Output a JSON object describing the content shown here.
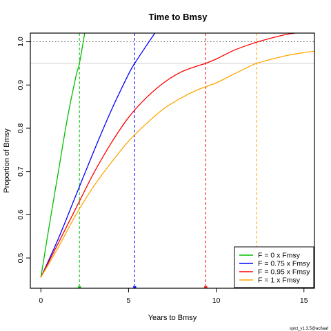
{
  "chart_data": {
    "type": "line",
    "title": "Time to Bmsy",
    "xlabel": "Years to Bmsy",
    "ylabel": "Proportion of Bmsy",
    "xlim": [
      -0.6,
      15.6
    ],
    "ylim": [
      0.43,
      1.02
    ],
    "x_ticks": [
      0,
      5,
      10,
      15
    ],
    "y_ticks": [
      0.5,
      0.6,
      0.7,
      0.8,
      0.9,
      1.0
    ],
    "x_tick_labels": [
      "0",
      "5",
      "10",
      "15"
    ],
    "y_tick_labels": [
      "0.5",
      "0.6",
      "0.7",
      "0.8",
      "0.9",
      "1.0"
    ],
    "reference_lines": [
      {
        "y": 1.0,
        "style": "dotted",
        "color": "#555555"
      },
      {
        "y": 0.95,
        "style": "solid",
        "color": "#cccccc"
      }
    ],
    "series": [
      {
        "name": "F = 0 x Fmsy",
        "color": "#00c000",
        "x": [
          0,
          0.5,
          1.0,
          1.5,
          2.0,
          2.2,
          2.5
        ],
        "y": [
          0.455,
          0.58,
          0.7,
          0.82,
          0.92,
          0.95,
          1.02
        ],
        "time_to_095": 2.2
      },
      {
        "name": "F = 0.75 x Fmsy",
        "color": "#0000ff",
        "x": [
          0,
          1,
          2,
          3,
          4,
          5,
          5.35,
          6,
          6.5
        ],
        "y": [
          0.455,
          0.545,
          0.645,
          0.745,
          0.84,
          0.925,
          0.95,
          0.99,
          1.02
        ],
        "time_to_095": 5.35
      },
      {
        "name": "F = 0.95 x Fmsy",
        "color": "#ff0000",
        "x": [
          0,
          1,
          2,
          3,
          4,
          5,
          6,
          7,
          8,
          9,
          9.4,
          10,
          11,
          12,
          13,
          14,
          14.5
        ],
        "y": [
          0.455,
          0.535,
          0.615,
          0.695,
          0.765,
          0.825,
          0.87,
          0.905,
          0.93,
          0.945,
          0.95,
          0.96,
          0.98,
          0.995,
          1.007,
          1.017,
          1.02
        ],
        "time_to_095": 9.4
      },
      {
        "name": "F = 1 x Fmsy",
        "color": "#ffa500",
        "x": [
          0,
          1,
          2,
          3,
          4,
          5,
          6,
          7,
          8,
          9,
          10,
          11,
          12,
          12.3,
          13,
          14,
          15,
          15.6
        ],
        "y": [
          0.455,
          0.525,
          0.6,
          0.665,
          0.72,
          0.77,
          0.81,
          0.845,
          0.87,
          0.89,
          0.905,
          0.925,
          0.945,
          0.95,
          0.958,
          0.968,
          0.975,
          0.978
        ],
        "time_to_095": 12.3
      }
    ],
    "legend_position": "bottom-right",
    "grid": false
  },
  "footnote": "spict_v1.3.5@ac6aaf"
}
